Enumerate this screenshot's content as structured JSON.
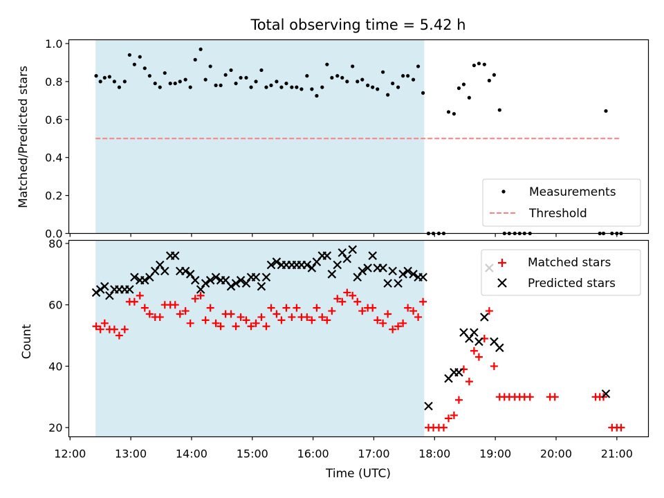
{
  "title": "Total observing time = 5.42 h",
  "chart_data": [
    {
      "type": "scatter",
      "panel": "top",
      "ylabel": "Matched/Predicted stars",
      "xlim": [
        11.98,
        21.52
      ],
      "ylim": [
        0.0,
        1.02
      ],
      "yticks": [
        0.0,
        0.2,
        0.4,
        0.6,
        0.8,
        1.0
      ],
      "ytick_labels": [
        "0.0",
        "0.2",
        "0.4",
        "0.6",
        "0.8",
        "1.0"
      ],
      "grid": false,
      "legend": "bottom-right",
      "shaded_interval": [
        12.42,
        17.83
      ],
      "shade_color": "#add8e6",
      "series": [
        {
          "name": "Measurements",
          "marker": "dot",
          "color": "#000000",
          "x": [
            12.43,
            12.5,
            12.57,
            12.65,
            12.73,
            12.81,
            12.9,
            12.98,
            13.06,
            13.15,
            13.23,
            13.31,
            13.4,
            13.48,
            13.56,
            13.65,
            13.73,
            13.81,
            13.9,
            13.98,
            14.06,
            14.15,
            14.23,
            14.31,
            14.4,
            14.48,
            14.56,
            14.65,
            14.73,
            14.81,
            14.9,
            14.98,
            15.06,
            15.15,
            15.23,
            15.31,
            15.4,
            15.48,
            15.56,
            15.65,
            15.73,
            15.81,
            15.9,
            15.98,
            16.06,
            16.15,
            16.23,
            16.31,
            16.4,
            16.48,
            16.56,
            16.65,
            16.73,
            16.81,
            16.9,
            16.98,
            17.06,
            17.15,
            17.23,
            17.31,
            17.4,
            17.48,
            17.56,
            17.65,
            17.73,
            17.81,
            17.9,
            17.98,
            18.07,
            18.15,
            18.23,
            18.32,
            18.4,
            18.48,
            18.57,
            18.65,
            18.73,
            18.82,
            18.9,
            18.98,
            19.07,
            19.15,
            19.23,
            19.32,
            19.4,
            19.48,
            19.57,
            20.82,
            20.72,
            20.78,
            20.92,
            21.0,
            21.07
          ],
          "y": [
            0.83,
            0.8,
            0.82,
            0.825,
            0.8,
            0.77,
            0.8,
            0.94,
            0.89,
            0.93,
            0.87,
            0.83,
            0.79,
            0.77,
            0.845,
            0.79,
            0.79,
            0.8,
            0.81,
            0.77,
            0.915,
            0.97,
            0.81,
            0.88,
            0.78,
            0.78,
            0.835,
            0.86,
            0.79,
            0.82,
            0.82,
            0.77,
            0.8,
            0.86,
            0.77,
            0.78,
            0.8,
            0.77,
            0.79,
            0.77,
            0.77,
            0.76,
            0.83,
            0.76,
            0.725,
            0.77,
            0.89,
            0.82,
            0.83,
            0.82,
            0.8,
            0.88,
            0.8,
            0.81,
            0.78,
            0.77,
            0.76,
            0.85,
            0.73,
            0.79,
            0.77,
            0.83,
            0.83,
            0.81,
            0.88,
            0.74,
            0.0,
            0.0,
            0.0,
            0.0,
            0.64,
            0.63,
            0.765,
            0.785,
            0.715,
            0.885,
            0.895,
            0.89,
            0.805,
            0.835,
            0.65,
            0.0,
            0.0,
            0.0,
            0.0,
            0.0,
            0.0,
            0.645,
            0.0,
            0.0,
            0.0,
            0.0,
            0.0
          ]
        },
        {
          "name": "Threshold",
          "marker": "dashed-line",
          "color": "#ff7f7f",
          "x": [
            12.42,
            21.07
          ],
          "y": [
            0.5,
            0.5
          ]
        }
      ]
    },
    {
      "type": "scatter",
      "panel": "bottom",
      "xlabel": "Time (UTC)",
      "ylabel": "Count",
      "xlim": [
        11.98,
        21.52
      ],
      "ylim": [
        17,
        81
      ],
      "xticks": [
        12,
        13,
        14,
        15,
        16,
        17,
        18,
        19,
        20,
        21
      ],
      "xtick_labels": [
        "12:00",
        "13:00",
        "14:00",
        "15:00",
        "16:00",
        "17:00",
        "18:00",
        "19:00",
        "20:00",
        "21:00"
      ],
      "yticks": [
        20,
        40,
        60,
        80
      ],
      "ytick_labels": [
        "20",
        "40",
        "60",
        "80"
      ],
      "grid": false,
      "legend": "top-right",
      "shaded_interval": [
        12.42,
        17.83
      ],
      "shade_color": "#add8e6",
      "series": [
        {
          "name": "Matched stars",
          "marker": "plus",
          "color": "#ff0000",
          "x": [
            12.43,
            12.5,
            12.57,
            12.65,
            12.73,
            12.81,
            12.9,
            12.98,
            13.06,
            13.15,
            13.23,
            13.31,
            13.4,
            13.48,
            13.56,
            13.65,
            13.73,
            13.81,
            13.9,
            13.98,
            14.06,
            14.15,
            14.23,
            14.31,
            14.4,
            14.48,
            14.56,
            14.65,
            14.73,
            14.81,
            14.9,
            14.98,
            15.06,
            15.15,
            15.23,
            15.31,
            15.4,
            15.48,
            15.56,
            15.65,
            15.73,
            15.81,
            15.9,
            15.98,
            16.06,
            16.15,
            16.23,
            16.31,
            16.4,
            16.48,
            16.56,
            16.65,
            16.73,
            16.81,
            16.9,
            16.98,
            17.06,
            17.15,
            17.23,
            17.31,
            17.4,
            17.48,
            17.56,
            17.65,
            17.73,
            17.81,
            17.9,
            17.98,
            18.07,
            18.15,
            18.23,
            18.32,
            18.4,
            18.48,
            18.57,
            18.65,
            18.73,
            18.82,
            18.9,
            18.98,
            19.07,
            19.15,
            19.23,
            19.32,
            19.4,
            19.48,
            19.57,
            19.9,
            19.98,
            20.65,
            20.72,
            20.78,
            20.92,
            21.0,
            21.07
          ],
          "y": [
            53,
            52,
            54,
            52,
            52,
            50,
            52,
            61,
            61,
            63,
            59,
            57,
            56,
            56,
            60,
            60,
            60,
            57,
            58,
            54,
            62,
            63,
            55,
            59,
            54,
            53,
            57,
            57,
            53,
            56,
            55,
            53,
            54,
            56,
            53,
            59,
            57,
            55,
            59,
            56,
            59,
            56,
            56,
            55,
            59,
            56,
            55,
            58,
            62,
            61,
            64,
            63,
            61,
            58,
            59,
            59,
            55,
            54,
            57,
            52,
            53,
            54,
            59,
            58,
            56,
            61,
            20,
            20,
            20,
            20,
            23,
            24,
            29,
            39,
            35,
            45,
            43,
            49,
            58,
            40,
            30,
            30,
            30,
            30,
            30,
            30,
            30,
            30,
            30,
            30,
            30,
            30,
            20,
            20,
            20
          ]
        },
        {
          "name": "Predicted stars",
          "marker": "x",
          "color": "#000000",
          "x": [
            12.43,
            12.5,
            12.57,
            12.65,
            12.73,
            12.81,
            12.9,
            12.98,
            13.06,
            13.15,
            13.23,
            13.31,
            13.4,
            13.48,
            13.56,
            13.65,
            13.73,
            13.81,
            13.9,
            13.98,
            14.06,
            14.15,
            14.23,
            14.31,
            14.4,
            14.48,
            14.56,
            14.65,
            14.73,
            14.81,
            14.9,
            14.98,
            15.06,
            15.15,
            15.23,
            15.31,
            15.4,
            15.48,
            15.56,
            15.65,
            15.73,
            15.81,
            15.9,
            15.98,
            16.06,
            16.15,
            16.23,
            16.31,
            16.4,
            16.48,
            16.56,
            16.65,
            16.73,
            16.81,
            16.9,
            16.98,
            17.06,
            17.15,
            17.23,
            17.31,
            17.4,
            17.48,
            17.56,
            17.65,
            17.73,
            17.81,
            17.9,
            18.23,
            18.32,
            18.4,
            18.48,
            18.57,
            18.65,
            18.73,
            18.82,
            18.9,
            18.98,
            19.07,
            20.82
          ],
          "y": [
            64,
            65,
            66,
            63,
            65,
            65,
            65,
            65,
            69,
            68,
            68,
            69,
            71,
            73,
            71,
            76,
            76,
            71,
            71,
            70,
            68,
            65,
            67,
            68,
            69,
            68,
            68,
            66,
            67,
            68,
            67,
            69,
            69,
            66,
            69,
            73,
            74,
            73,
            73,
            73,
            73,
            73,
            73,
            72,
            74,
            76,
            76,
            70,
            73,
            77,
            75,
            78,
            69,
            71,
            72,
            76,
            72,
            72,
            67,
            71,
            67,
            70,
            71,
            70,
            69,
            69,
            27,
            36,
            38,
            38,
            51,
            49,
            51,
            48,
            56,
            72,
            48,
            46,
            31
          ]
        }
      ]
    }
  ]
}
